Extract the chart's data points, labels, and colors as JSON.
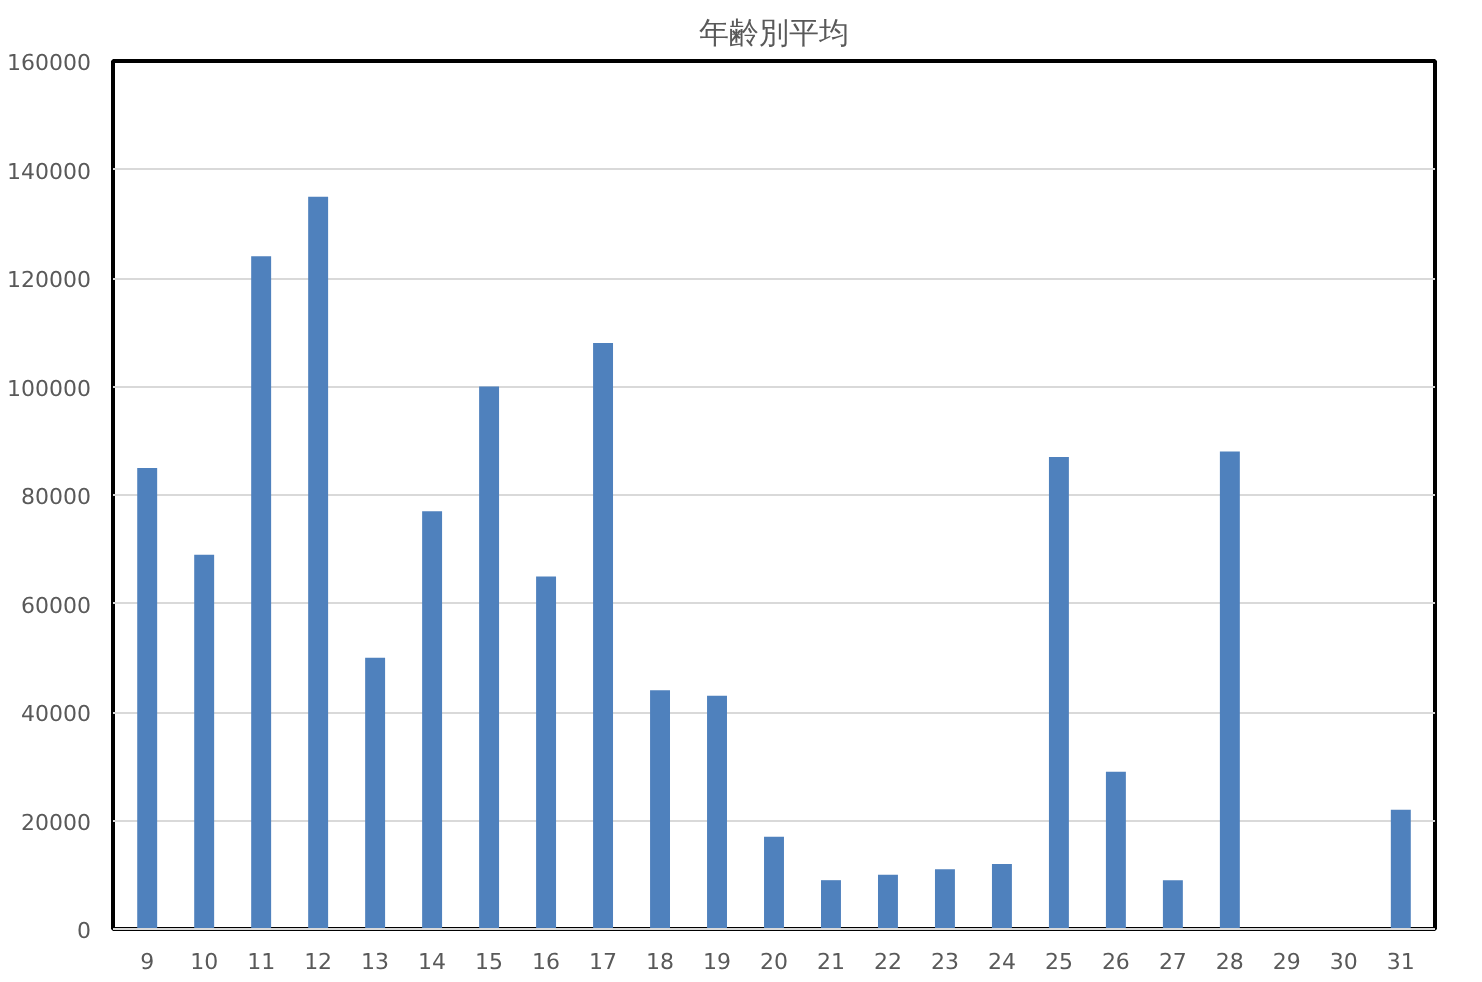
{
  "chart_data": {
    "type": "bar",
    "title": "年齢別平均",
    "categories": [
      "9",
      "10",
      "11",
      "12",
      "13",
      "14",
      "15",
      "16",
      "17",
      "18",
      "19",
      "20",
      "21",
      "22",
      "23",
      "24",
      "25",
      "26",
      "27",
      "28",
      "29",
      "30",
      "31"
    ],
    "values": [
      85000,
      69000,
      124000,
      135000,
      50000,
      77000,
      100000,
      65000,
      108000,
      44000,
      43000,
      17000,
      9000,
      10000,
      11000,
      12000,
      87000,
      29000,
      9000,
      88000,
      0,
      0,
      22000
    ],
    "color": "#4f81bd",
    "ylim": [
      0,
      160000
    ],
    "yticks": [
      0,
      20000,
      40000,
      60000,
      80000,
      100000,
      120000,
      140000,
      160000
    ],
    "grid": "y"
  }
}
